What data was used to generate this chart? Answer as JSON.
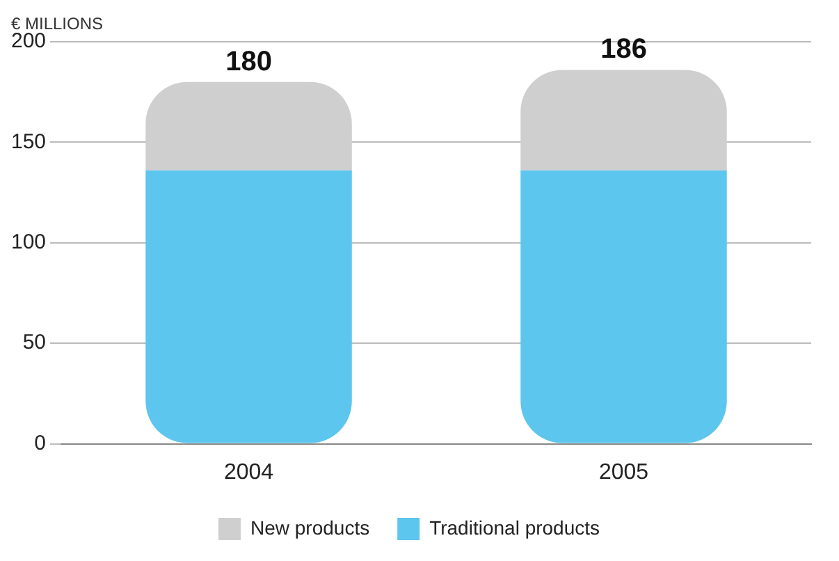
{
  "chart_data": {
    "type": "bar",
    "ylabel": "€ MILLIONS",
    "categories": [
      "2004",
      "2005"
    ],
    "stacked": true,
    "series": [
      {
        "name": "Traditional products",
        "color": "#5cc6ee",
        "values": [
          136,
          136
        ]
      },
      {
        "name": "New products",
        "color": "#cfcfcf",
        "values": [
          44,
          50
        ]
      }
    ],
    "totals": [
      "180",
      "186"
    ],
    "ylim": [
      0,
      200
    ],
    "yticks": [
      0,
      50,
      100,
      150,
      200
    ],
    "grid": "y",
    "legend": "bottom"
  }
}
